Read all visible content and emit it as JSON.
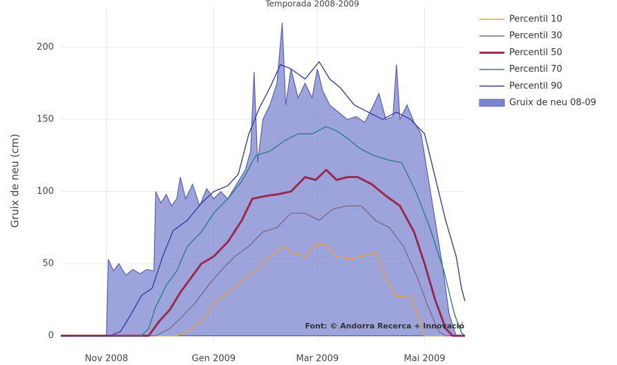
{
  "chart_data": {
    "type": "line",
    "title": "Temporada 2008-2009",
    "y_label": "Gruix de neu (cm)",
    "annotation": "Font: © Andorra Recerca + Innovació",
    "xlim": [
      "2008-10-06",
      "2009-05-24"
    ],
    "xticks": [
      {
        "value": "2008-11-01",
        "label": "Nov 2008"
      },
      {
        "value": "2009-01-01",
        "label": "Gen 2009"
      },
      {
        "value": "2009-03-01",
        "label": "Mar 2009"
      },
      {
        "value": "2009-05-01",
        "label": "Mai 2009"
      }
    ],
    "ylim": [
      -4,
      228
    ],
    "yticks": [
      0,
      50,
      100,
      150,
      200
    ],
    "grid": true,
    "legend": "right",
    "series": [
      {
        "name": "Percentil 10",
        "type": "line",
        "color": "#f0a030",
        "x": [
          "2008-10-06",
          "2008-12-11",
          "2008-12-17",
          "2008-12-25",
          "2009-01-01",
          "2009-01-09",
          "2009-01-17",
          "2009-01-25",
          "2009-02-02",
          "2009-02-10",
          "2009-02-16",
          "2009-02-22",
          "2009-02-28",
          "2009-03-06",
          "2009-03-12",
          "2009-03-20",
          "2009-03-26",
          "2009-04-03",
          "2009-04-09",
          "2009-04-15",
          "2009-04-23",
          "2009-04-27",
          "2009-05-01",
          "2009-05-24"
        ],
        "values": [
          0,
          0,
          3,
          10,
          22,
          30,
          38,
          45,
          55,
          62,
          57,
          55,
          63,
          63,
          55,
          53,
          55,
          58,
          40,
          27,
          28,
          15,
          0,
          0
        ]
      },
      {
        "name": "Percentil 30",
        "type": "line",
        "color": "#7a6a8c",
        "x": [
          "2008-10-06",
          "2008-11-29",
          "2008-12-07",
          "2008-12-13",
          "2008-12-21",
          "2008-12-29",
          "2009-01-05",
          "2009-01-13",
          "2009-01-21",
          "2009-01-29",
          "2009-02-06",
          "2009-02-14",
          "2009-02-22",
          "2009-03-02",
          "2009-03-10",
          "2009-03-18",
          "2009-03-26",
          "2009-04-03",
          "2009-04-11",
          "2009-04-19",
          "2009-04-27",
          "2009-05-03",
          "2009-05-09",
          "2009-05-13",
          "2009-05-24"
        ],
        "values": [
          0,
          0,
          5,
          12,
          22,
          35,
          45,
          55,
          62,
          72,
          75,
          85,
          85,
          80,
          88,
          90,
          90,
          80,
          75,
          62,
          40,
          20,
          3,
          0,
          0
        ]
      },
      {
        "name": "Percentil 50",
        "type": "line",
        "color": "#9a2a4c",
        "x": [
          "2008-10-06",
          "2008-11-25",
          "2008-12-01",
          "2008-12-07",
          "2008-12-13",
          "2008-12-19",
          "2008-12-25",
          "2009-01-01",
          "2009-01-09",
          "2009-01-17",
          "2009-01-23",
          "2009-01-31",
          "2009-02-06",
          "2009-02-14",
          "2009-02-22",
          "2009-02-28",
          "2009-03-06",
          "2009-03-12",
          "2009-03-18",
          "2009-03-24",
          "2009-04-01",
          "2009-04-09",
          "2009-04-17",
          "2009-04-25",
          "2009-05-01",
          "2009-05-07",
          "2009-05-13",
          "2009-05-17",
          "2009-05-24"
        ],
        "values": [
          0,
          0,
          10,
          18,
          30,
          40,
          50,
          55,
          65,
          80,
          95,
          97,
          98,
          100,
          110,
          108,
          115,
          108,
          110,
          110,
          105,
          97,
          90,
          72,
          50,
          25,
          5,
          0,
          0
        ]
      },
      {
        "name": "Percentil 70",
        "type": "line",
        "color": "#2a7d88",
        "x": [
          "2008-10-06",
          "2008-11-21",
          "2008-11-25",
          "2008-11-29",
          "2008-12-05",
          "2008-12-11",
          "2008-12-17",
          "2008-12-25",
          "2009-01-01",
          "2009-01-09",
          "2009-01-17",
          "2009-01-25",
          "2009-02-02",
          "2009-02-10",
          "2009-02-18",
          "2009-02-26",
          "2009-03-06",
          "2009-03-12",
          "2009-03-18",
          "2009-03-25",
          "2009-04-02",
          "2009-04-10",
          "2009-04-18",
          "2009-04-26",
          "2009-05-04",
          "2009-05-12",
          "2009-05-18",
          "2009-05-22",
          "2009-05-24"
        ],
        "values": [
          0,
          0,
          5,
          20,
          35,
          45,
          62,
          72,
          85,
          95,
          107,
          125,
          128,
          135,
          140,
          140,
          145,
          142,
          137,
          130,
          125,
          122,
          120,
          100,
          75,
          45,
          15,
          2,
          0
        ]
      },
      {
        "name": "Percentil 90",
        "type": "line",
        "color": "#3c3c9e",
        "x": [
          "2008-10-06",
          "2008-11-03",
          "2008-11-09",
          "2008-11-15",
          "2008-11-21",
          "2008-11-27",
          "2008-12-03",
          "2008-12-09",
          "2008-12-17",
          "2008-12-25",
          "2009-01-01",
          "2009-01-09",
          "2009-01-15",
          "2009-01-21",
          "2009-01-27",
          "2009-02-02",
          "2009-02-08",
          "2009-02-14",
          "2009-02-22",
          "2009-03-02",
          "2009-03-08",
          "2009-03-14",
          "2009-03-22",
          "2009-03-30",
          "2009-04-07",
          "2009-04-15",
          "2009-04-23",
          "2009-05-01",
          "2009-05-07",
          "2009-05-13",
          "2009-05-19",
          "2009-05-22",
          "2009-05-24"
        ],
        "values": [
          0,
          0,
          3,
          15,
          28,
          33,
          55,
          73,
          80,
          92,
          100,
          104,
          112,
          140,
          158,
          172,
          188,
          185,
          178,
          190,
          178,
          172,
          160,
          155,
          150,
          155,
          150,
          140,
          110,
          80,
          55,
          33,
          24
        ]
      },
      {
        "name": "Gruix de neu 08-09",
        "type": "area",
        "color": "#7b86cf",
        "x": [
          "2008-10-06",
          "2008-11-01",
          "2008-11-02",
          "2008-11-05",
          "2008-11-08",
          "2008-11-12",
          "2008-11-16",
          "2008-11-20",
          "2008-11-24",
          "2008-11-28",
          "2008-11-29",
          "2008-12-02",
          "2008-12-05",
          "2008-12-08",
          "2008-12-11",
          "2008-12-13",
          "2008-12-16",
          "2008-12-20",
          "2008-12-24",
          "2008-12-28",
          "2009-01-01",
          "2009-01-05",
          "2009-01-09",
          "2009-01-14",
          "2009-01-19",
          "2009-01-22",
          "2009-01-24",
          "2009-01-26",
          "2009-01-29",
          "2009-02-02",
          "2009-02-06",
          "2009-02-09",
          "2009-02-11",
          "2009-02-14",
          "2009-02-18",
          "2009-02-22",
          "2009-02-26",
          "2009-03-01",
          "2009-03-04",
          "2009-03-08",
          "2009-03-13",
          "2009-03-18",
          "2009-03-23",
          "2009-03-28",
          "2009-04-02",
          "2009-04-05",
          "2009-04-09",
          "2009-04-13",
          "2009-04-15",
          "2009-04-17",
          "2009-04-21",
          "2009-04-25",
          "2009-04-29",
          "2009-05-03",
          "2009-05-07",
          "2009-05-11",
          "2009-05-15",
          "2009-05-19",
          "2009-05-24"
        ],
        "values": [
          0,
          0,
          53,
          45,
          50,
          42,
          46,
          43,
          46,
          45,
          100,
          92,
          98,
          90,
          95,
          110,
          95,
          105,
          90,
          102,
          95,
          100,
          95,
          105,
          115,
          128,
          183,
          120,
          150,
          160,
          175,
          217,
          160,
          185,
          165,
          175,
          165,
          185,
          170,
          160,
          155,
          150,
          152,
          148,
          160,
          168,
          150,
          152,
          188,
          150,
          160,
          148,
          140,
          110,
          80,
          50,
          15,
          0,
          0
        ]
      }
    ]
  }
}
